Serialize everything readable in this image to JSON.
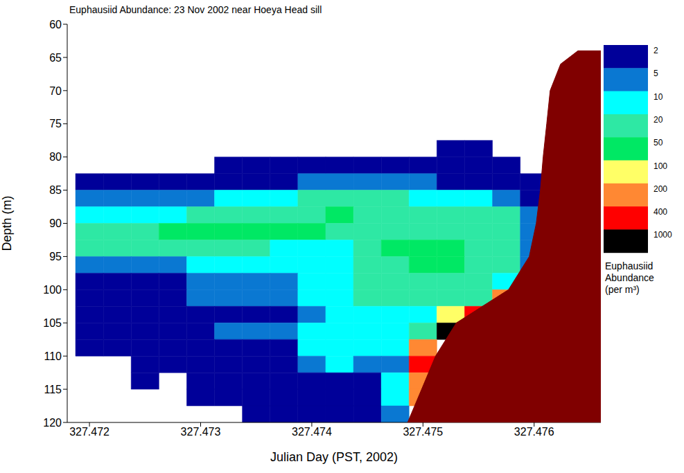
{
  "chart_data": {
    "type": "heatmap",
    "title": "Euphausiid Abundance: 23 Nov 2002 near Hoeya Head sill",
    "x_label": "Julian Day (PST, 2002)",
    "y_label": "Depth (m)",
    "xlim": [
      327.4718,
      327.4766
    ],
    "xticks": [
      327.472,
      327.473,
      327.474,
      327.475,
      327.476
    ],
    "ylim": [
      60,
      120
    ],
    "yticks": [
      60,
      65,
      70,
      75,
      80,
      85,
      90,
      95,
      100,
      105,
      110,
      115,
      120
    ],
    "cells": {
      "x": [
        327.472,
        327.47225,
        327.4725,
        327.47275,
        327.473,
        327.47325,
        327.4735,
        327.47375,
        327.474,
        327.47425,
        327.4745,
        327.47475,
        327.475,
        327.47525,
        327.4755,
        327.47575,
        327.476
      ],
      "depth": [
        78.75,
        81.25,
        83.75,
        86.25,
        88.75,
        91.25,
        93.75,
        96.25,
        98.75,
        101.25,
        103.75,
        106.25,
        108.75,
        111.25,
        113.75,
        116.25,
        118.75
      ],
      "values": [
        [
          0,
          0,
          0,
          0,
          0,
          0,
          0,
          0,
          0,
          0,
          0,
          0,
          0,
          3,
          3,
          0,
          0
        ],
        [
          0,
          0,
          0,
          0,
          0,
          3,
          3,
          3,
          3,
          3,
          3,
          3,
          3,
          3,
          3,
          3,
          0
        ],
        [
          3,
          3,
          3,
          3,
          3,
          3,
          3,
          3,
          7,
          7,
          7,
          7,
          7,
          3,
          3,
          3,
          3
        ],
        [
          7,
          7,
          7,
          7,
          7,
          15,
          15,
          15,
          30,
          30,
          30,
          30,
          15,
          15,
          15,
          7,
          3
        ],
        [
          15,
          15,
          15,
          15,
          30,
          30,
          30,
          30,
          30,
          70,
          30,
          30,
          30,
          30,
          30,
          30,
          7
        ],
        [
          30,
          30,
          30,
          70,
          70,
          70,
          70,
          70,
          70,
          30,
          30,
          30,
          30,
          30,
          30,
          30,
          7
        ],
        [
          30,
          30,
          30,
          30,
          30,
          30,
          30,
          15,
          15,
          15,
          30,
          70,
          70,
          70,
          30,
          30,
          7
        ],
        [
          7,
          7,
          7,
          7,
          15,
          15,
          15,
          15,
          15,
          15,
          30,
          30,
          70,
          70,
          30,
          30,
          7
        ],
        [
          3,
          3,
          3,
          3,
          7,
          7,
          7,
          7,
          15,
          15,
          30,
          30,
          30,
          30,
          30,
          15,
          0
        ],
        [
          3,
          3,
          3,
          3,
          7,
          7,
          7,
          7,
          15,
          15,
          30,
          30,
          30,
          30,
          30,
          300,
          0
        ],
        [
          3,
          3,
          3,
          3,
          3,
          3,
          3,
          3,
          7,
          15,
          15,
          15,
          15,
          100,
          600,
          0,
          0
        ],
        [
          3,
          3,
          3,
          3,
          3,
          7,
          7,
          7,
          15,
          15,
          15,
          15,
          30,
          1200,
          0,
          0,
          0
        ],
        [
          3,
          3,
          3,
          3,
          3,
          3,
          3,
          3,
          15,
          15,
          15,
          15,
          300,
          0,
          0,
          0,
          0
        ],
        [
          0,
          0,
          3,
          3,
          3,
          3,
          3,
          3,
          7,
          15,
          7,
          7,
          600,
          0,
          0,
          0,
          0
        ],
        [
          0,
          0,
          3,
          0,
          3,
          3,
          3,
          3,
          3,
          3,
          3,
          15,
          300,
          0,
          0,
          0,
          0
        ],
        [
          0,
          0,
          0,
          0,
          3,
          3,
          3,
          3,
          3,
          3,
          3,
          15,
          300,
          0,
          0,
          0,
          0
        ],
        [
          0,
          0,
          0,
          0,
          0,
          0,
          3,
          3,
          3,
          3,
          3,
          7,
          0,
          0,
          0,
          0,
          0
        ]
      ]
    },
    "colorbar": {
      "label": "Euphausiid Abundance (per m³)",
      "ticks": [
        2,
        5,
        10,
        20,
        50,
        100,
        200,
        400,
        1000
      ],
      "colors": [
        "#000099",
        "#0a78d2",
        "#00ffff",
        "#2ee8a4",
        "#00e864",
        "#ffff66",
        "#ff8833",
        "#ff0000",
        "#000000"
      ]
    },
    "seafloor": {
      "color": "#800000",
      "x": [
        327.474862,
        327.474988,
        327.475113,
        327.4753,
        327.475581,
        327.475769,
        327.475956,
        327.476019,
        327.476056,
        327.476081,
        327.476113,
        327.476144,
        327.476238,
        327.476394,
        327.476625
      ],
      "depth": [
        120,
        115,
        110,
        105,
        102,
        100,
        95,
        90,
        85,
        80,
        75,
        70,
        66,
        64,
        64
      ]
    }
  }
}
